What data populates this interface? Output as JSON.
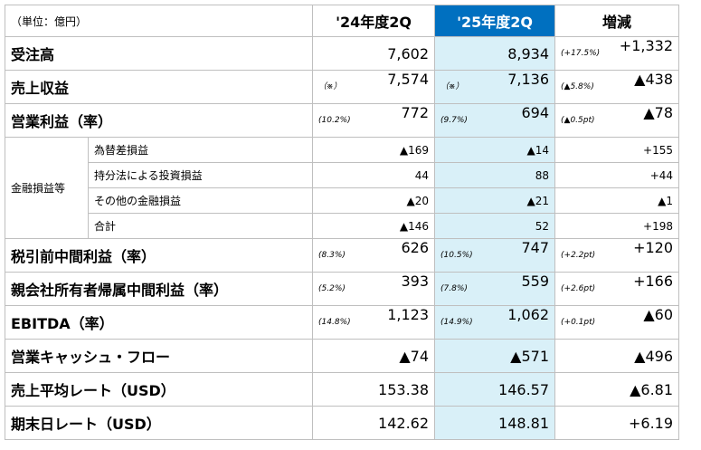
{
  "header": {
    "unit": "（単位：億円）",
    "col24": "'24年度2Q",
    "col25": "'25年度2Q",
    "change": "増減"
  },
  "rows": [
    {
      "label": "受注高",
      "v24": "7,602",
      "v25": "8,934",
      "chg_note": "(+17.5%)",
      "chg": "+1,332"
    },
    {
      "label": "売上収益",
      "n24": "（※）",
      "v24": "7,574",
      "n25": "（※）",
      "v25": "7,136",
      "chg_note": "(▲5.8%)",
      "chg": "▲438"
    },
    {
      "label": "営業利益（率）",
      "n24": "(10.2%)",
      "v24": "772",
      "n25": "(9.7%)",
      "v25": "694",
      "chg_note": "(▲0.5pt)",
      "chg": "▲78"
    }
  ],
  "group": {
    "label": "金融損益等",
    "items": [
      {
        "label": "為替差損益",
        "v24": "▲169",
        "v25": "▲14",
        "chg": "+155"
      },
      {
        "label": "持分法による投資損益",
        "v24": "44",
        "v25": "88",
        "chg": "+44"
      },
      {
        "label": "その他の金融損益",
        "v24": "▲20",
        "v25": "▲21",
        "chg": "▲1"
      },
      {
        "label": "合計",
        "v24": "▲146",
        "v25": "52",
        "chg": "+198"
      }
    ]
  },
  "rows2": [
    {
      "label": "税引前中間利益（率）",
      "n24": "(8.3%)",
      "v24": "626",
      "n25": "(10.5%)",
      "v25": "747",
      "chg_note": "(+2.2pt)",
      "chg": "+120"
    },
    {
      "label": "親会社所有者帰属中間利益（率）",
      "n24": "(5.2%)",
      "v24": "393",
      "n25": "(7.8%)",
      "v25": "559",
      "chg_note": "(+2.6pt)",
      "chg": "+166"
    },
    {
      "label": "EBITDA（率）",
      "n24": "(14.8%)",
      "v24": "1,123",
      "n25": "(14.9%)",
      "v25": "1,062",
      "chg_note": "(+0.1pt)",
      "chg": "▲60"
    },
    {
      "label": "営業キャッシュ・フロー",
      "v24": "▲74",
      "v25": "▲571",
      "chg": "▲496"
    },
    {
      "label": "売上平均レート（USD）",
      "v24": "153.38",
      "v25": "146.57",
      "chg": "▲6.81"
    },
    {
      "label": "期末日レート（USD）",
      "v24": "142.62",
      "v25": "148.81",
      "chg": "+6.19"
    }
  ]
}
